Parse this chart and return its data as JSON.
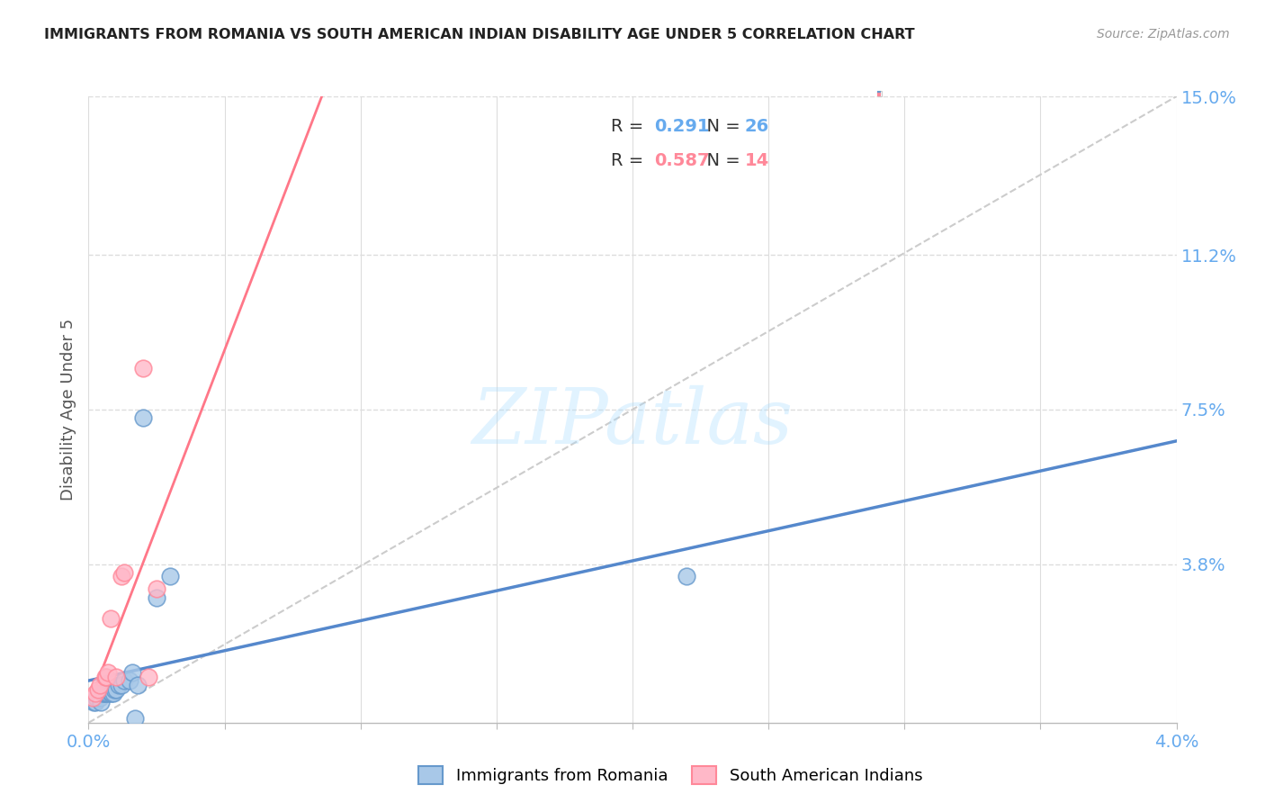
{
  "title": "IMMIGRANTS FROM ROMANIA VS SOUTH AMERICAN INDIAN DISABILITY AGE UNDER 5 CORRELATION CHART",
  "source": "Source: ZipAtlas.com",
  "ylabel": "Disability Age Under 5",
  "xlim": [
    0.0,
    0.04
  ],
  "ylim": [
    0.0,
    0.15
  ],
  "xtick_positions": [
    0.0,
    0.005,
    0.01,
    0.015,
    0.02,
    0.025,
    0.03,
    0.035,
    0.04
  ],
  "xticklabels": [
    "0.0%",
    "",
    "",
    "",
    "",
    "",
    "",
    "",
    "4.0%"
  ],
  "ytick_positions": [
    0.038,
    0.075,
    0.112,
    0.15
  ],
  "ytick_labels": [
    "3.8%",
    "7.5%",
    "11.2%",
    "15.0%"
  ],
  "legend_r1": "0.291",
  "legend_n1": "26",
  "legend_r2": "0.587",
  "legend_n2": "14",
  "color_romania": "#A8C8E8",
  "color_sai": "#FFB8C8",
  "color_romania_edge": "#6699CC",
  "color_sai_edge": "#FF8899",
  "color_romania_line": "#5588CC",
  "color_sai_line": "#FF7788",
  "color_dashed": "#CCCCCC",
  "color_grid": "#DDDDDD",
  "color_tick_label": "#66AAEE",
  "watermark": "ZIPatlas",
  "background": "#FFFFFF",
  "romania_x": [
    0.0002,
    0.00025,
    0.0003,
    0.0004,
    0.00045,
    0.0005,
    0.00055,
    0.0006,
    0.00065,
    0.0007,
    0.0008,
    0.00085,
    0.0009,
    0.00095,
    0.001,
    0.0011,
    0.0012,
    0.0013,
    0.0015,
    0.0016,
    0.0018,
    0.002,
    0.0025,
    0.003,
    0.022,
    0.0017
  ],
  "romania_y": [
    0.005,
    0.005,
    0.006,
    0.006,
    0.005,
    0.007,
    0.007,
    0.007,
    0.007,
    0.007,
    0.007,
    0.007,
    0.007,
    0.008,
    0.008,
    0.009,
    0.009,
    0.01,
    0.01,
    0.012,
    0.009,
    0.073,
    0.03,
    0.035,
    0.035,
    0.001
  ],
  "sai_x": [
    0.00015,
    0.00025,
    0.00035,
    0.0004,
    0.0006,
    0.00065,
    0.0007,
    0.0008,
    0.001,
    0.0012,
    0.0013,
    0.002,
    0.0022,
    0.0025
  ],
  "sai_y": [
    0.006,
    0.007,
    0.008,
    0.009,
    0.011,
    0.011,
    0.012,
    0.025,
    0.011,
    0.035,
    0.036,
    0.085,
    0.011,
    0.032
  ]
}
